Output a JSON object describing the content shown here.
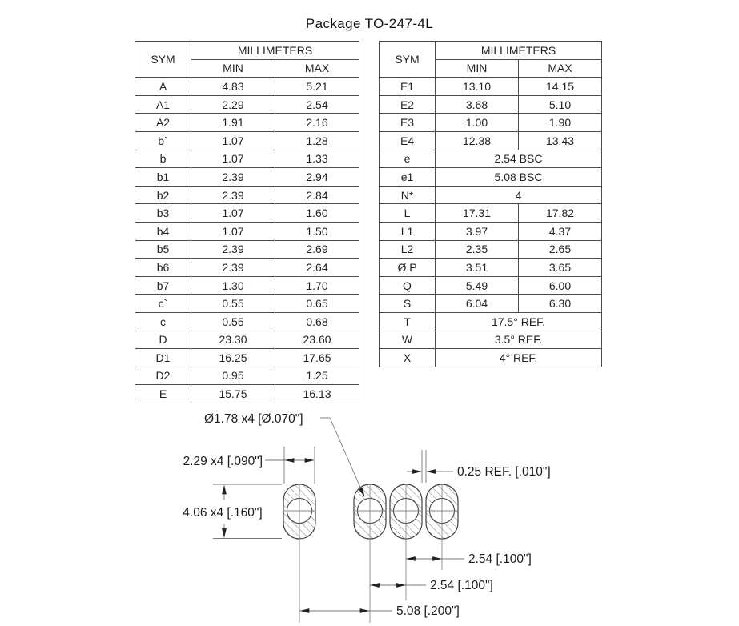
{
  "title": "Package TO-247-4L",
  "tables": {
    "headers": {
      "sym": "SYM",
      "group": "MILLIMETERS",
      "min": "MIN",
      "max": "MAX"
    },
    "left": {
      "rows": [
        {
          "sym": "A",
          "min": "4.83",
          "max": "5.21"
        },
        {
          "sym": "A1",
          "min": "2.29",
          "max": "2.54"
        },
        {
          "sym": "A2",
          "min": "1.91",
          "max": "2.16"
        },
        {
          "sym": "b`",
          "min": "1.07",
          "max": "1.28"
        },
        {
          "sym": "b",
          "min": "1.07",
          "max": "1.33"
        },
        {
          "sym": "b1",
          "min": "2.39",
          "max": "2.94"
        },
        {
          "sym": "b2",
          "min": "2.39",
          "max": "2.84"
        },
        {
          "sym": "b3",
          "min": "1.07",
          "max": "1.60"
        },
        {
          "sym": "b4",
          "min": "1.07",
          "max": "1.50"
        },
        {
          "sym": "b5",
          "min": "2.39",
          "max": "2.69"
        },
        {
          "sym": "b6",
          "min": "2.39",
          "max": "2.64"
        },
        {
          "sym": "b7",
          "min": "1.30",
          "max": "1.70"
        },
        {
          "sym": "c`",
          "min": "0.55",
          "max": "0.65"
        },
        {
          "sym": "c",
          "min": "0.55",
          "max": "0.68"
        },
        {
          "sym": "D",
          "min": "23.30",
          "max": "23.60"
        },
        {
          "sym": "D1",
          "min": "16.25",
          "max": "17.65"
        },
        {
          "sym": "D2",
          "min": "0.95",
          "max": "1.25"
        },
        {
          "sym": "E",
          "min": "15.75",
          "max": "16.13"
        }
      ]
    },
    "right": {
      "rows": [
        {
          "sym": "E1",
          "min": "13.10",
          "max": "14.15"
        },
        {
          "sym": "E2",
          "min": "3.68",
          "max": "5.10"
        },
        {
          "sym": "E3",
          "min": "1.00",
          "max": "1.90"
        },
        {
          "sym": "E4",
          "min": "12.38",
          "max": "13.43"
        },
        {
          "sym": "e",
          "span": "2.54 BSC"
        },
        {
          "sym": "e1",
          "span": "5.08 BSC"
        },
        {
          "sym": "N*",
          "span": "4"
        },
        {
          "sym": "L",
          "min": "17.31",
          "max": "17.82"
        },
        {
          "sym": "L1",
          "min": "3.97",
          "max": "4.37"
        },
        {
          "sym": "L2",
          "min": "2.35",
          "max": "2.65"
        },
        {
          "sym": "Ø P",
          "min": "3.51",
          "max": "3.65"
        },
        {
          "sym": "Q",
          "min": "5.49",
          "max": "6.00"
        },
        {
          "sym": "S",
          "min": "6.04",
          "max": "6.30"
        },
        {
          "sym": "T",
          "span": "17.5° REF."
        },
        {
          "sym": "W",
          "span": "3.5° REF."
        },
        {
          "sym": "X",
          "span": "4° REF."
        }
      ]
    }
  },
  "drawing": {
    "labels": {
      "hole": "Ø1.78 x4 [Ø.070\"]",
      "pad_width": "2.29 x4 [.090\"]",
      "pad_height": "4.06 x4 [.160\"]",
      "web": "0.25 REF. [.010\"]",
      "pitch_a": "2.54 [.100\"]",
      "pitch_b": "2.54 [.100\"]",
      "pitch_c": "5.08 [.200\"]"
    },
    "colors": {
      "line": "#777777",
      "outline": "#3f3f3f",
      "text": "#1b1b1b"
    }
  }
}
